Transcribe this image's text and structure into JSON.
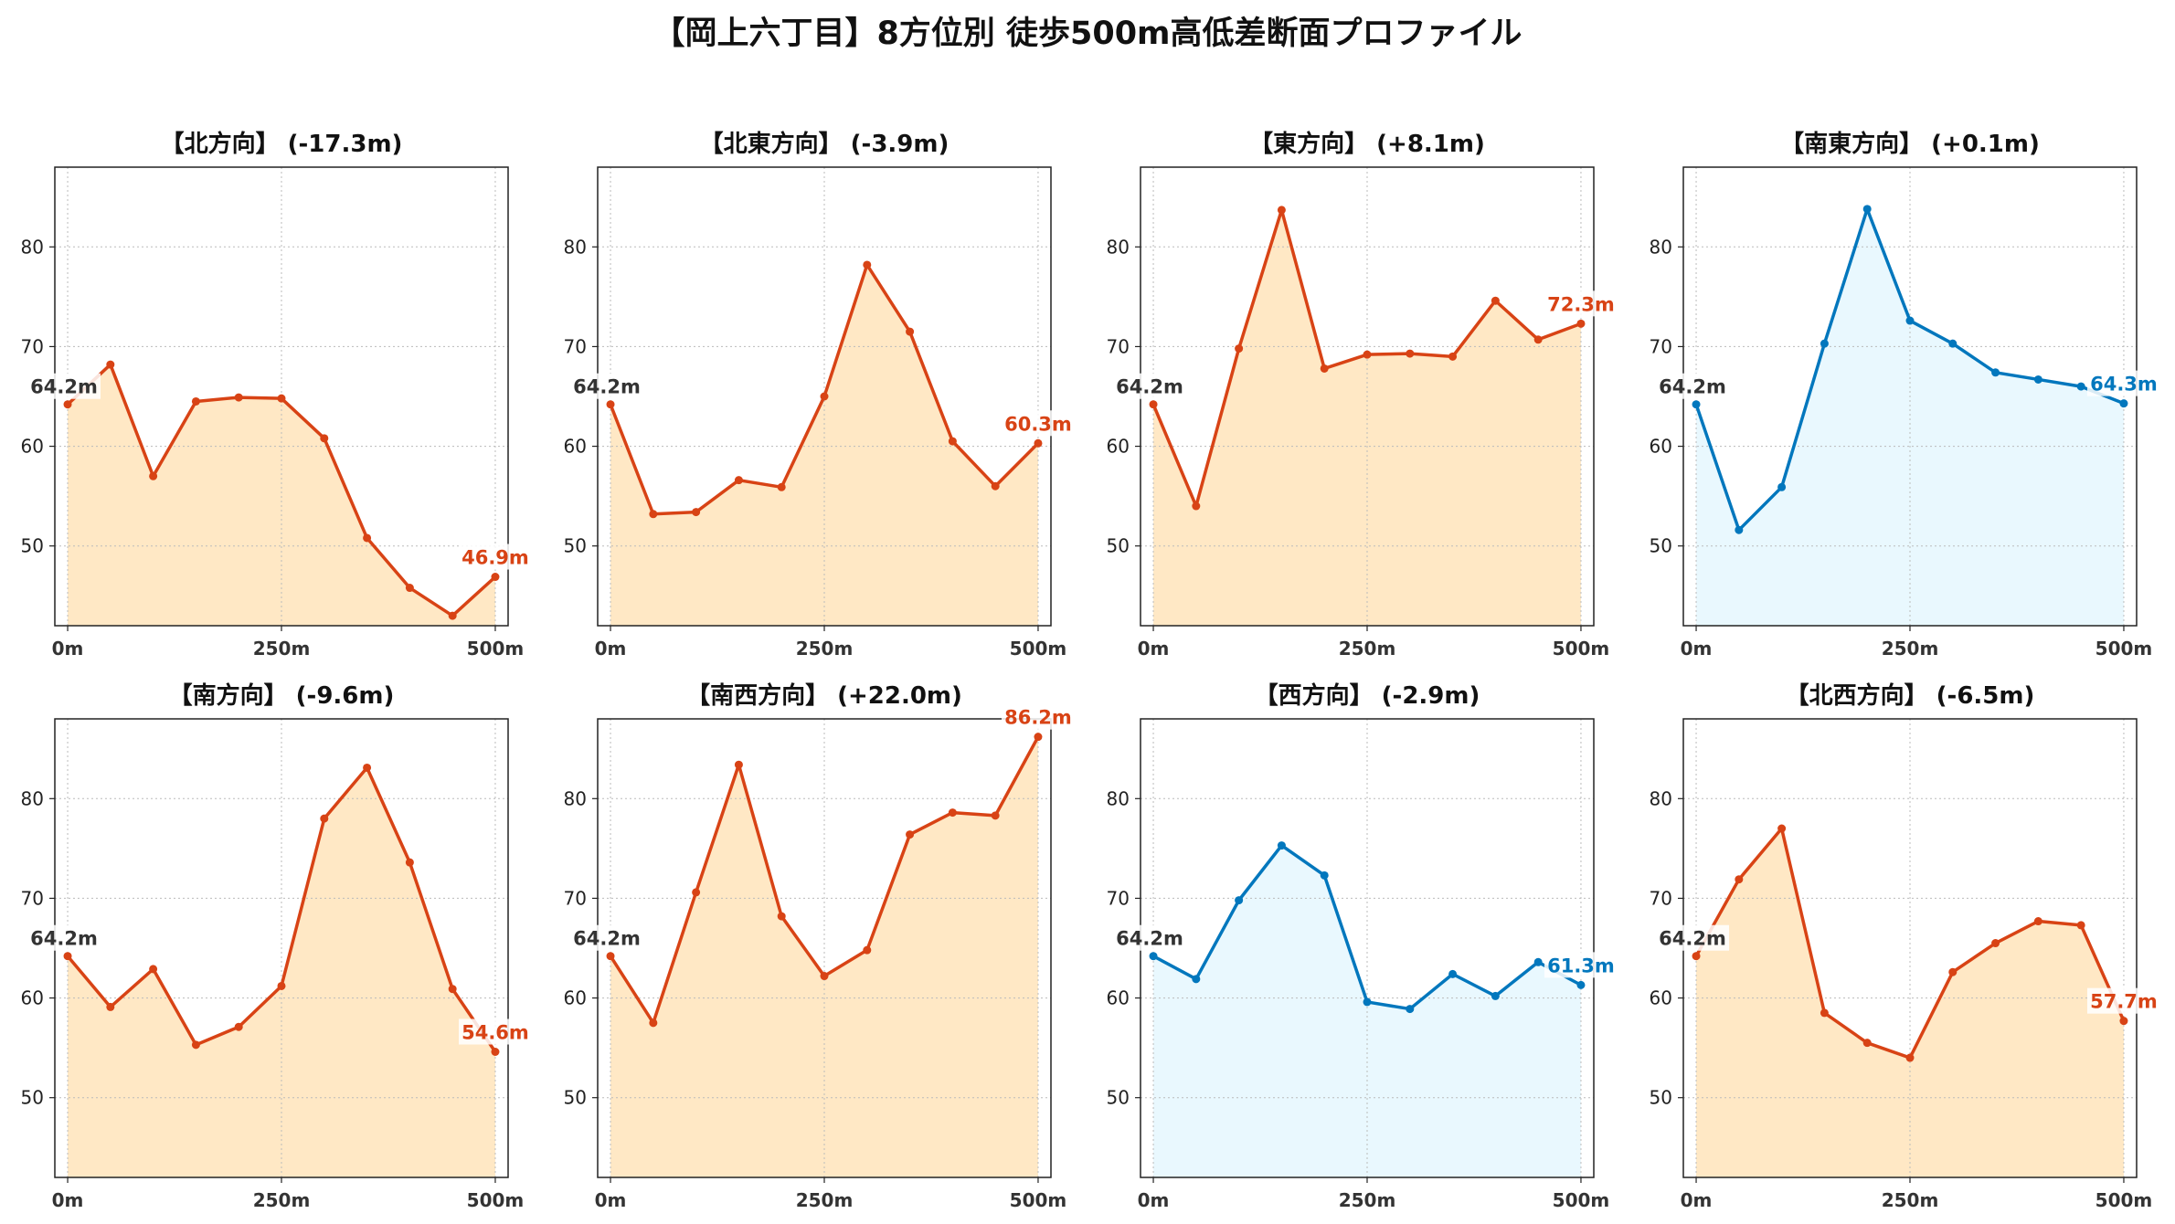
{
  "figure_title": "【岡上六丁目】8方位別 徒歩500m高低差断面プロファイル",
  "colors": {
    "up": "#D84315",
    "up_fill": "#FFE0B2",
    "down": "#0277BD",
    "down_fill": "#E1F5FE",
    "start_label": "#333333",
    "grid": "#bbbbbb"
  },
  "chart_data": [
    {
      "type": "line",
      "title": "【北方向】 (-17.3m)",
      "x": [
        0,
        50,
        100,
        150,
        200,
        250,
        300,
        350,
        400,
        450,
        500
      ],
      "values": [
        64.2,
        68.2,
        57.0,
        64.5,
        64.9,
        64.8,
        60.8,
        50.8,
        45.8,
        43.0,
        46.9
      ],
      "start_label": "64.2m",
      "end_label": "46.9m",
      "trend": "up",
      "xticks": [
        "0m",
        "250m",
        "500m"
      ],
      "yticks": [
        50,
        60,
        70,
        80
      ],
      "xlim": [
        -15,
        515
      ],
      "ylim": [
        42,
        88
      ],
      "grid": true
    },
    {
      "type": "line",
      "title": "【北東方向】 (-3.9m)",
      "x": [
        0,
        50,
        100,
        150,
        200,
        250,
        300,
        350,
        400,
        450,
        500
      ],
      "values": [
        64.2,
        53.2,
        53.4,
        56.6,
        55.9,
        65.0,
        78.2,
        71.5,
        60.5,
        56.0,
        60.3
      ],
      "start_label": "64.2m",
      "end_label": "60.3m",
      "trend": "up",
      "xticks": [
        "0m",
        "250m",
        "500m"
      ],
      "yticks": [
        50,
        60,
        70,
        80
      ],
      "xlim": [
        -15,
        515
      ],
      "ylim": [
        42,
        88
      ],
      "grid": true
    },
    {
      "type": "line",
      "title": "【東方向】 (+8.1m)",
      "x": [
        0,
        50,
        100,
        150,
        200,
        250,
        300,
        350,
        400,
        450,
        500
      ],
      "values": [
        64.2,
        54.0,
        69.8,
        83.7,
        67.8,
        69.2,
        69.3,
        69.0,
        74.6,
        70.7,
        72.3
      ],
      "start_label": "64.2m",
      "end_label": "72.3m",
      "trend": "up",
      "xticks": [
        "0m",
        "250m",
        "500m"
      ],
      "yticks": [
        50,
        60,
        70,
        80
      ],
      "xlim": [
        -15,
        515
      ],
      "ylim": [
        42,
        88
      ],
      "grid": true
    },
    {
      "type": "line",
      "title": "【南東方向】 (+0.1m)",
      "x": [
        0,
        50,
        100,
        150,
        200,
        250,
        300,
        350,
        400,
        450,
        500
      ],
      "values": [
        64.2,
        51.6,
        55.9,
        70.3,
        83.8,
        72.6,
        70.3,
        67.4,
        66.7,
        66.0,
        64.3
      ],
      "start_label": "64.2m",
      "end_label": "64.3m",
      "trend": "down",
      "xticks": [
        "0m",
        "250m",
        "500m"
      ],
      "yticks": [
        50,
        60,
        70,
        80
      ],
      "xlim": [
        -15,
        515
      ],
      "ylim": [
        42,
        88
      ],
      "grid": true
    },
    {
      "type": "line",
      "title": "【南方向】 (-9.6m)",
      "x": [
        0,
        50,
        100,
        150,
        200,
        250,
        300,
        350,
        400,
        450,
        500
      ],
      "values": [
        64.2,
        59.1,
        62.9,
        55.3,
        57.1,
        61.2,
        78.0,
        83.1,
        73.6,
        60.9,
        54.6
      ],
      "start_label": "64.2m",
      "end_label": "54.6m",
      "trend": "up",
      "xticks": [
        "0m",
        "250m",
        "500m"
      ],
      "yticks": [
        50,
        60,
        70,
        80
      ],
      "xlim": [
        -15,
        515
      ],
      "ylim": [
        42,
        88
      ],
      "grid": true
    },
    {
      "type": "line",
      "title": "【南西方向】 (+22.0m)",
      "x": [
        0,
        50,
        100,
        150,
        200,
        250,
        300,
        350,
        400,
        450,
        500
      ],
      "values": [
        64.2,
        57.5,
        70.6,
        83.4,
        68.2,
        62.2,
        64.8,
        76.4,
        78.6,
        78.3,
        86.2
      ],
      "start_label": "64.2m",
      "end_label": "86.2m",
      "trend": "up",
      "xticks": [
        "0m",
        "250m",
        "500m"
      ],
      "yticks": [
        50,
        60,
        70,
        80
      ],
      "xlim": [
        -15,
        515
      ],
      "ylim": [
        42,
        88
      ],
      "grid": true
    },
    {
      "type": "line",
      "title": "【西方向】 (-2.9m)",
      "x": [
        0,
        50,
        100,
        150,
        200,
        250,
        300,
        350,
        400,
        450,
        500
      ],
      "values": [
        64.2,
        61.9,
        69.8,
        75.3,
        72.3,
        59.6,
        58.9,
        62.4,
        60.2,
        63.6,
        61.3
      ],
      "start_label": "64.2m",
      "end_label": "61.3m",
      "trend": "down",
      "xticks": [
        "0m",
        "250m",
        "500m"
      ],
      "yticks": [
        50,
        60,
        70,
        80
      ],
      "xlim": [
        -15,
        515
      ],
      "ylim": [
        42,
        88
      ],
      "grid": true
    },
    {
      "type": "line",
      "title": "【北西方向】 (-6.5m)",
      "x": [
        0,
        50,
        100,
        150,
        200,
        250,
        300,
        350,
        400,
        450,
        500
      ],
      "values": [
        64.2,
        71.9,
        77.0,
        58.5,
        55.5,
        54.0,
        62.6,
        65.5,
        67.7,
        67.3,
        57.7
      ],
      "start_label": "64.2m",
      "end_label": "57.7m",
      "trend": "up",
      "xticks": [
        "0m",
        "250m",
        "500m"
      ],
      "yticks": [
        50,
        60,
        70,
        80
      ],
      "xlim": [
        -15,
        515
      ],
      "ylim": [
        42,
        88
      ],
      "grid": true
    }
  ]
}
